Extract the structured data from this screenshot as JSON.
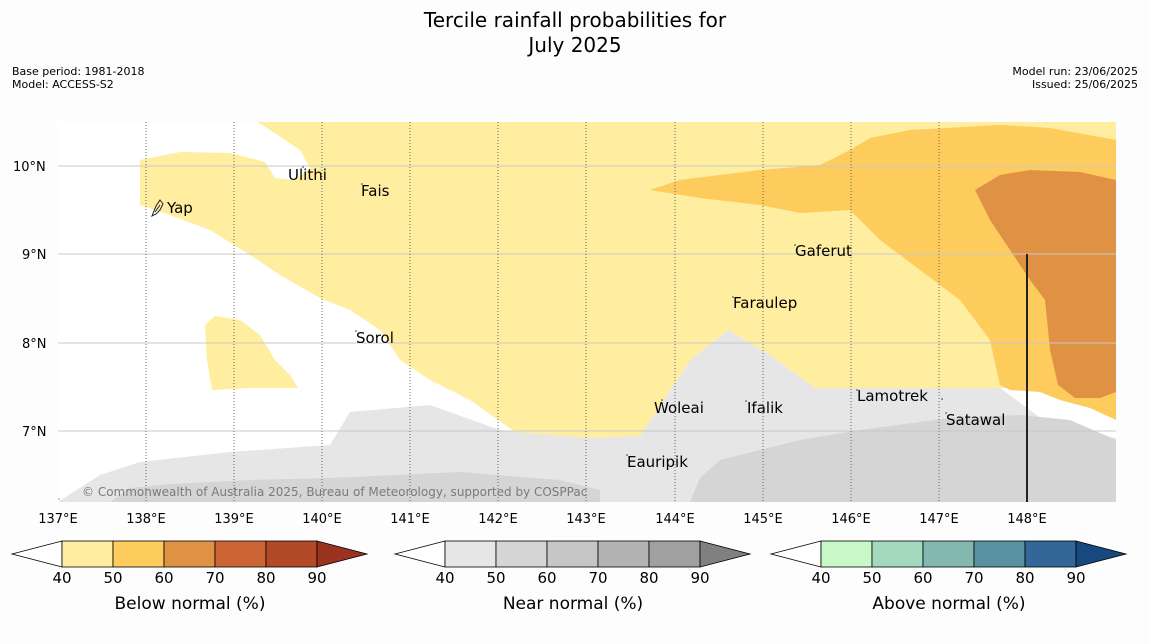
{
  "title": {
    "line1": "Tercile rainfall probabilities for",
    "line2": "July 2025"
  },
  "info_left": {
    "base_period": "Base period: 1981-2018",
    "model": "Model: ACCESS-S2"
  },
  "info_right": {
    "model_run": "Model run: 23/06/2025",
    "issued": "Issued: 25/06/2025"
  },
  "map": {
    "lat_labels": [
      "10°N",
      "9°N",
      "8°N",
      "7°N"
    ],
    "lon_labels": [
      "137°E",
      "138°E",
      "139°E",
      "140°E",
      "141°E",
      "142°E",
      "143°E",
      "144°E",
      "145°E",
      "146°E",
      "147°E",
      "148°E"
    ],
    "places": {
      "yap": "Yap",
      "ulithi": "Ulithi",
      "fais": "Fais",
      "sorol": "Sorol",
      "gaferut": "Gaferut",
      "faraulep": "Faraulep",
      "woleai": "Woleai",
      "ifalik": "Ifalik",
      "lamotrek": "Lamotrek",
      "satawal": "Satawal",
      "eauripik": "Eauripik"
    },
    "credit": "© Commonwealth of Australia 2025, Bureau of Meteorology, supported by COSPPac"
  },
  "colorbars": [
    {
      "label": "Below normal (%)",
      "ticks": [
        "40",
        "50",
        "60",
        "70",
        "80",
        "90"
      ],
      "colors": [
        "#ffeda0",
        "#fecc5c",
        "#e09244",
        "#cd6434",
        "#b34a27",
        "#9a3420"
      ]
    },
    {
      "label": "Near normal (%)",
      "ticks": [
        "40",
        "50",
        "60",
        "70",
        "80",
        "90"
      ],
      "colors": [
        "#e6e6e6",
        "#d5d5d5",
        "#c6c6c6",
        "#b3b3b3",
        "#a0a0a0",
        "#808080"
      ]
    },
    {
      "label": "Above normal (%)",
      "ticks": [
        "40",
        "50",
        "60",
        "70",
        "80",
        "90"
      ],
      "colors": [
        "#c8f8c8",
        "#a3d9bd",
        "#82b8b0",
        "#5b92a2",
        "#336699",
        "#17497e"
      ]
    }
  ]
}
